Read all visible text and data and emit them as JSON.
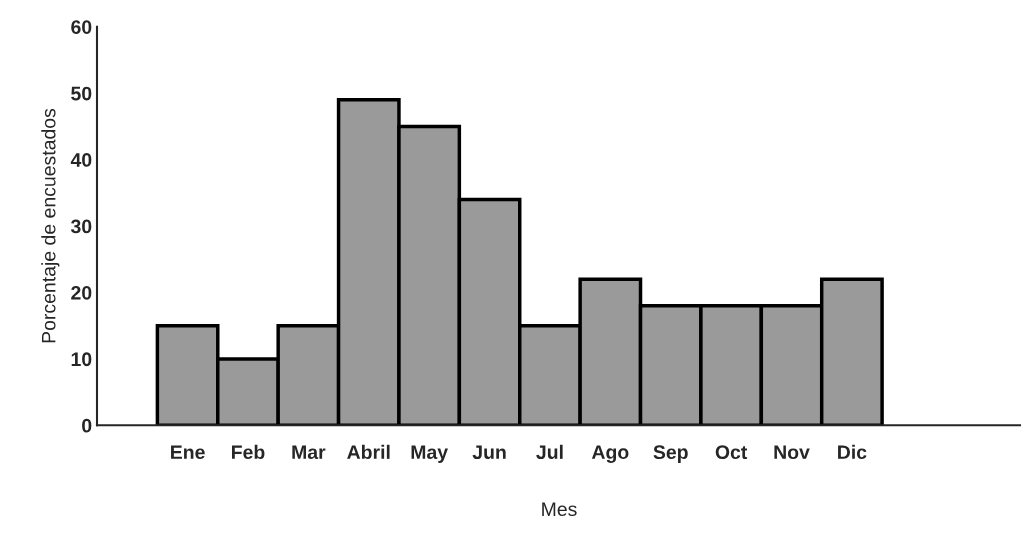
{
  "chart_data": {
    "type": "bar",
    "xlabel": "Mes",
    "ylabel": "Porcentaje de encuestados",
    "categories": [
      "Ene",
      "Feb",
      "Mar",
      "Abril",
      "May",
      "Jun",
      "Jul",
      "Ago",
      "Sep",
      "Oct",
      "Nov",
      "Dic"
    ],
    "values": [
      15,
      10,
      15,
      49,
      45,
      34,
      15,
      22,
      18,
      18,
      18,
      22
    ],
    "color": "#9a9a9a",
    "ylim": [
      0,
      60
    ],
    "yticks": [
      0,
      10,
      20,
      30,
      40,
      50,
      60
    ],
    "grid": false,
    "legend": false
  }
}
